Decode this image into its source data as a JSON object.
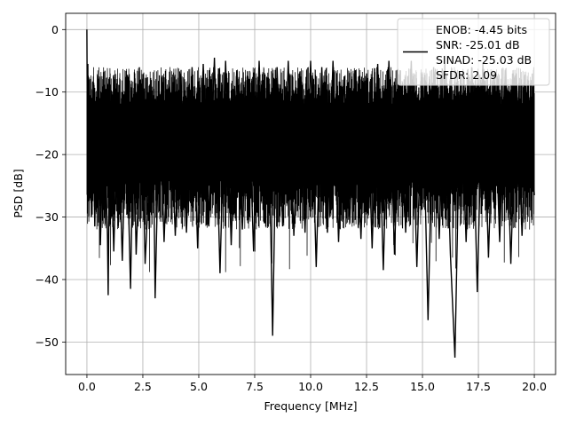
{
  "chart_data": {
    "type": "line",
    "xlabel": "Frequency [MHz]",
    "ylabel": "PSD [dB]",
    "xlim": [
      -0.95,
      20.95
    ],
    "ylim": [
      -55.2,
      2.6
    ],
    "xticks": [
      0.0,
      2.5,
      5.0,
      7.5,
      10.0,
      12.5,
      15.0,
      17.5,
      20.0
    ],
    "xtick_labels": [
      "0.0",
      "2.5",
      "5.0",
      "7.5",
      "10.0",
      "12.5",
      "15.0",
      "17.5",
      "20.0"
    ],
    "yticks": [
      0,
      -10,
      -20,
      -30,
      -40,
      -50
    ],
    "ytick_labels": [
      "0",
      "−10",
      "−20",
      "−30",
      "−40",
      "−50"
    ],
    "grid": true,
    "legend_position": "top-right",
    "legend_lines": [
      "ENOB: -4.45 bits",
      "SNR: -25.01 dB",
      "SINAD: -25.03 dB",
      "SFDR: 2.09"
    ],
    "series": [
      {
        "color": "#000000",
        "x": [
          0.0,
          0.02,
          0.04,
          0.06,
          0.08,
          0.1,
          0.14,
          0.2,
          0.27,
          0.35,
          0.45,
          0.6,
          0.76,
          0.92,
          0.95,
          1.02,
          1.2,
          1.38,
          1.58,
          1.75,
          1.95,
          2.08,
          2.2,
          2.45,
          2.6,
          2.95,
          3.05,
          3.25,
          3.45,
          3.7,
          3.95,
          4.2,
          4.45,
          4.7,
          4.95,
          5.2,
          5.45,
          5.7,
          5.95,
          6.2,
          6.45,
          6.7,
          6.95,
          7.2,
          7.45,
          7.7,
          7.95,
          8.1,
          8.3,
          8.5,
          8.75,
          9.0,
          9.25,
          9.5,
          9.75,
          10.0,
          10.25,
          10.5,
          10.75,
          11.0,
          11.25,
          11.5,
          11.75,
          12.0,
          12.25,
          12.5,
          12.75,
          13.0,
          13.25,
          13.5,
          13.75,
          14.0,
          14.25,
          14.5,
          14.75,
          15.0,
          15.25,
          15.5,
          15.75,
          16.0,
          16.25,
          16.45,
          16.7,
          16.95,
          17.2,
          17.45,
          17.7,
          17.95,
          18.2,
          18.45,
          18.7,
          18.95,
          19.2,
          19.45,
          19.7,
          20.0
        ],
        "y": [
          0.0,
          -14.5,
          -5.5,
          -27.5,
          -8.0,
          -26.0,
          -10.5,
          -30.0,
          -12.5,
          -31.5,
          -11.0,
          -34.5,
          -12.0,
          -33.0,
          -42.5,
          -13.0,
          -35.5,
          -11.5,
          -37.0,
          -12.5,
          -41.5,
          -13.5,
          -36.0,
          -12.0,
          -37.5,
          -11.0,
          -43.0,
          -10.5,
          -34.0,
          -8.5,
          -33.0,
          -7.0,
          -32.5,
          -6.0,
          -35.0,
          -5.5,
          -31.5,
          -4.5,
          -39.0,
          -5.0,
          -34.5,
          -6.5,
          -32.0,
          -7.5,
          -35.5,
          -5.0,
          -31.0,
          -8.5,
          -49.0,
          -6.0,
          -31.5,
          -5.0,
          -33.0,
          -7.0,
          -32.5,
          -5.0,
          -38.0,
          -6.0,
          -32.5,
          -5.0,
          -34.0,
          -7.5,
          -31.0,
          -6.5,
          -33.5,
          -7.0,
          -35.0,
          -5.5,
          -38.5,
          -5.0,
          -36.0,
          -6.5,
          -32.5,
          -5.0,
          -38.0,
          -7.0,
          -46.5,
          -6.0,
          -33.5,
          -5.5,
          -36.0,
          -52.5,
          -7.0,
          -34.0,
          -6.0,
          -42.0,
          -5.5,
          -36.5,
          -7.5,
          -34.0,
          -6.5,
          -37.5,
          -7.0,
          -33.0,
          -8.0,
          -26.5
        ]
      }
    ]
  }
}
